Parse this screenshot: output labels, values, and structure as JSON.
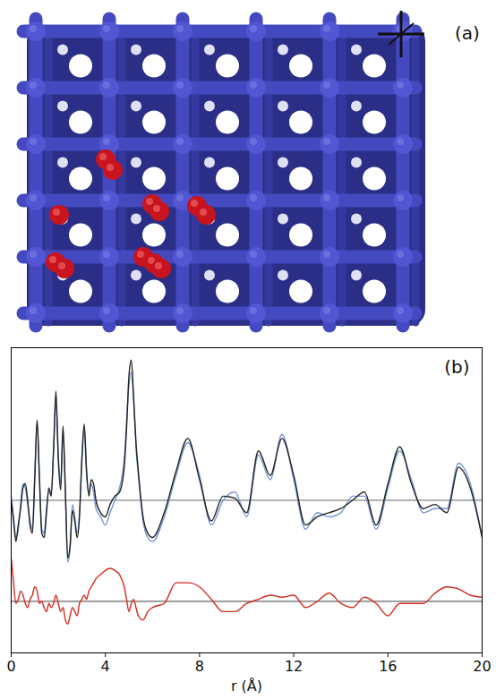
{
  "figure_a": {
    "label": "(a)"
  },
  "chart_data": {
    "type": "line",
    "panel_label": "(b)",
    "xlabel": "r (Å)",
    "xlim": [
      0,
      20
    ],
    "xticks": [
      0,
      4,
      8,
      12,
      16,
      20
    ],
    "ylim": [
      -7.4,
      7.4
    ],
    "yticks": [],
    "tick_labels": "x",
    "hlines": [
      0,
      -4.9
    ],
    "x": [
      0,
      0.1,
      0.2,
      0.3,
      0.4,
      0.5,
      0.6,
      0.7,
      0.8,
      0.9,
      1.0,
      1.1,
      1.2,
      1.3,
      1.4,
      1.5,
      1.6,
      1.7,
      1.8,
      1.9,
      2.0,
      2.1,
      2.2,
      2.3,
      2.4,
      2.5,
      2.6,
      2.7,
      2.8,
      2.9,
      3.0,
      3.1,
      3.2,
      3.3,
      3.4,
      3.5,
      3.6,
      3.8,
      4.0,
      4.2,
      4.4,
      4.6,
      4.8,
      4.9,
      5.0,
      5.1,
      5.2,
      5.3,
      5.4,
      5.6,
      5.8,
      6.0,
      6.5,
      7,
      7.5,
      8,
      8.5,
      9,
      9.5,
      10,
      10.5,
      11,
      11.5,
      12,
      12.5,
      13,
      13.5,
      14,
      14.5,
      15,
      15.5,
      16,
      16.5,
      17,
      17.5,
      18,
      18.5,
      19,
      19.5,
      20
    ],
    "series": [
      {
        "color": "#7796d8",
        "values": [
          0.2,
          -0.8,
          -1.8,
          -1.4,
          -0.2,
          0.8,
          0.6,
          -0.2,
          -1,
          -1.4,
          1.2,
          3.8,
          1.2,
          -1.4,
          -1.6,
          -0.4,
          0.4,
          0.4,
          2.4,
          4.8,
          2.2,
          0.8,
          3.2,
          0.4,
          -3,
          -2.4,
          -0.2,
          -0.8,
          -1.6,
          -0.6,
          1.8,
          3.5,
          1.2,
          0.4,
          0.8,
          0.4,
          -0.4,
          -0.8,
          -1.2,
          -0.6,
          0,
          0.6,
          2,
          3.8,
          5.6,
          6.2,
          4.8,
          2.6,
          1.2,
          -1,
          -1.8,
          -2,
          -0.8,
          1.2,
          2.8,
          1.2,
          -1.2,
          0,
          0.4,
          -0.8,
          2.2,
          1,
          3.2,
          1,
          -1.4,
          -0.6,
          -0.8,
          -0.6,
          0.2,
          0.2,
          -1.4,
          0.6,
          2.4,
          1,
          -0.6,
          -0.4,
          -0.4,
          1.8,
          0.8,
          -1.8
        ]
      },
      {
        "color": "#222222",
        "values": [
          0,
          -1,
          -2,
          -1.2,
          -0.4,
          0.6,
          0.8,
          0,
          -1.2,
          -1.6,
          1,
          3.9,
          1,
          -1.6,
          -1.8,
          -0.6,
          0.6,
          0.2,
          2.5,
          5.3,
          2,
          0.5,
          3.6,
          0.5,
          -2.8,
          -2.2,
          -0.5,
          -1,
          -1.8,
          -0.8,
          2,
          3.7,
          1.5,
          0.2,
          1,
          0.8,
          0,
          -0.6,
          -0.8,
          -0.2,
          0.2,
          0.4,
          1.6,
          3.5,
          6,
          6.8,
          5,
          2.8,
          1.4,
          -0.8,
          -1.6,
          -1.8,
          -0.6,
          1.4,
          3,
          1,
          -1,
          0.2,
          0.1,
          -0.6,
          2.4,
          1.2,
          3,
          1.2,
          -1.2,
          -0.8,
          -0.6,
          -0.4,
          0,
          0.4,
          -1.2,
          0.8,
          2.6,
          0.8,
          -0.4,
          -0.2,
          -0.6,
          1.6,
          0.6,
          -1.8
        ]
      },
      {
        "color": "#d42b1e",
        "values": [
          -2.8,
          -4,
          -5,
          -4.8,
          -4.4,
          -4.6,
          -5,
          -5.2,
          -4.8,
          -4.6,
          -4.2,
          -4.4,
          -5,
          -4.9,
          -5.2,
          -5.4,
          -5,
          -5.2,
          -5,
          -4.6,
          -5,
          -5.4,
          -5.2,
          -5.8,
          -6,
          -5.6,
          -5.2,
          -5.4,
          -5.6,
          -5,
          -4.8,
          -4.6,
          -4.8,
          -4.4,
          -4.2,
          -4,
          -3.8,
          -3.6,
          -3.4,
          -3.3,
          -3.4,
          -3.6,
          -4.2,
          -4.8,
          -5.4,
          -5,
          -4.8,
          -5.2,
          -5.6,
          -5.8,
          -5.4,
          -5.2,
          -5,
          -4,
          -4,
          -4.2,
          -4.8,
          -5.4,
          -5.4,
          -5,
          -4.8,
          -4.6,
          -4.7,
          -4.6,
          -5.2,
          -4.9,
          -4.5,
          -5,
          -5.2,
          -4.7,
          -5,
          -5.6,
          -5,
          -5,
          -5,
          -4.5,
          -4.2,
          -4.3,
          -4.6,
          -4.7
        ]
      }
    ]
  }
}
